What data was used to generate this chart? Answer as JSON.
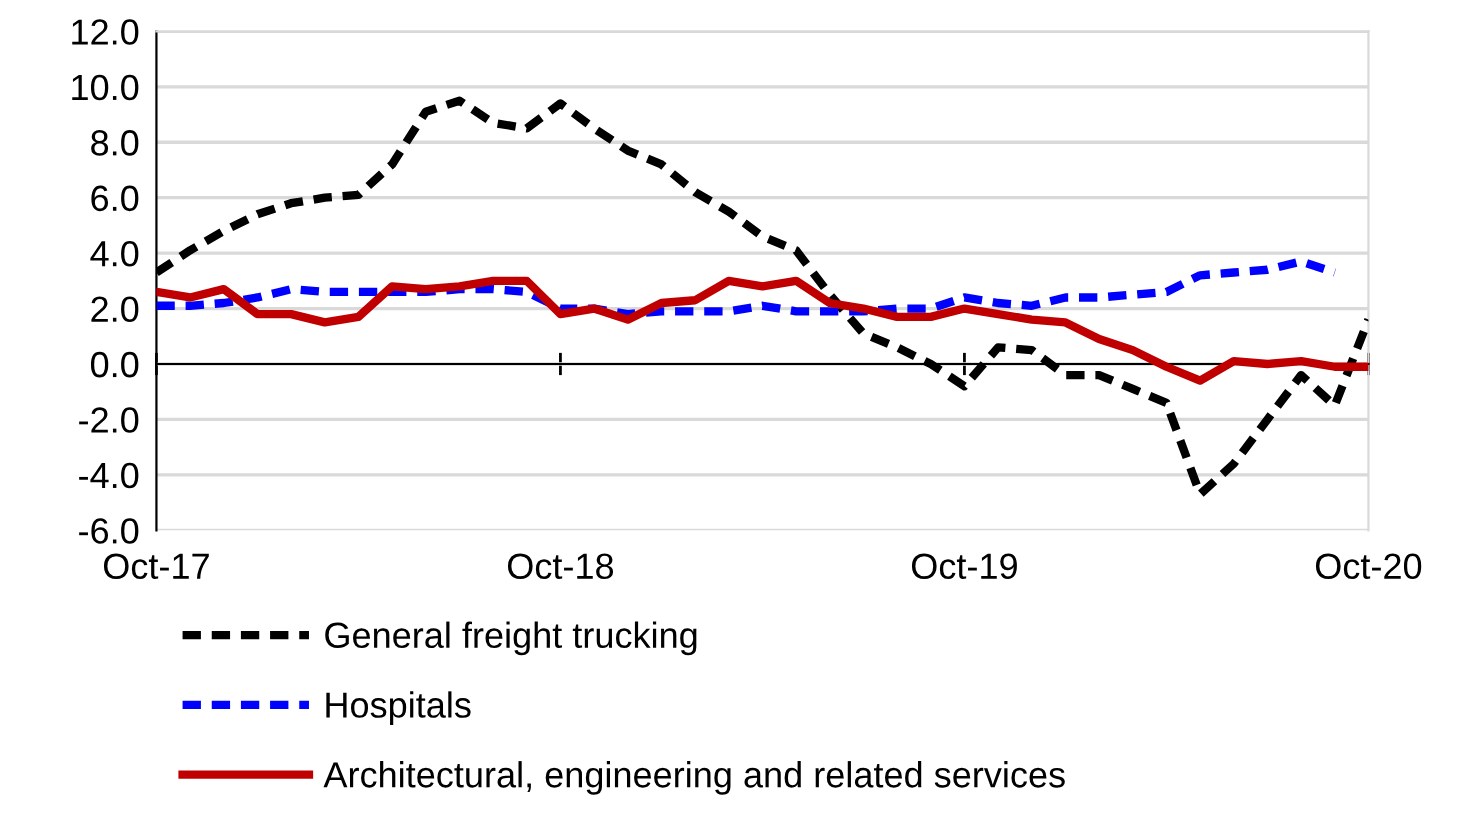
{
  "chart_data": {
    "type": "line",
    "categories": [
      "Oct-17",
      null,
      null,
      null,
      null,
      null,
      null,
      null,
      null,
      null,
      null,
      null,
      "Oct-18",
      null,
      null,
      null,
      null,
      null,
      null,
      null,
      null,
      null,
      null,
      null,
      "Oct-19",
      null,
      null,
      null,
      null,
      null,
      null,
      null,
      null,
      null,
      null,
      null,
      "Oct-20"
    ],
    "series": [
      {
        "name": "General freight trucking",
        "color": "#000000",
        "line_style": "dashed",
        "values": [
          3.3,
          4.1,
          4.8,
          5.4,
          5.8,
          6.0,
          6.1,
          7.2,
          9.1,
          9.5,
          8.7,
          8.5,
          9.4,
          8.5,
          7.7,
          7.2,
          6.2,
          5.5,
          4.6,
          4.1,
          2.5,
          1.1,
          0.6,
          0.0,
          -0.8,
          0.6,
          0.5,
          -0.4,
          -0.4,
          -0.9,
          -1.4,
          -4.7,
          -3.6,
          -2.0,
          -0.4,
          -1.5,
          1.6
        ]
      },
      {
        "name": "Hospitals",
        "color": "#0000ff",
        "line_style": "dashed",
        "values": [
          2.1,
          2.1,
          2.2,
          2.4,
          2.7,
          2.6,
          2.6,
          2.6,
          2.6,
          2.7,
          2.7,
          2.6,
          2.0,
          2.0,
          1.8,
          1.9,
          1.9,
          1.9,
          2.1,
          1.9,
          1.9,
          1.9,
          2.0,
          2.0,
          2.4,
          2.2,
          2.1,
          2.4,
          2.4,
          2.5,
          2.6,
          3.2,
          3.3,
          3.4,
          3.7,
          3.3,
          null
        ]
      },
      {
        "name": "Architectural, engineering and related services",
        "color": "#c00000",
        "line_style": "solid",
        "values": [
          2.6,
          2.4,
          2.7,
          1.8,
          1.8,
          1.5,
          1.7,
          2.8,
          2.7,
          2.8,
          3.0,
          3.0,
          1.8,
          2.0,
          1.6,
          2.2,
          2.3,
          3.0,
          2.8,
          3.0,
          2.2,
          2.0,
          1.7,
          1.7,
          2.0,
          1.8,
          1.6,
          1.5,
          0.9,
          0.5,
          -0.1,
          -0.6,
          0.1,
          0.0,
          0.1,
          -0.1,
          -0.1
        ]
      }
    ],
    "ylim": [
      -6,
      12
    ],
    "yticks": [
      {
        "value": -6,
        "label": "-6.0"
      },
      {
        "value": -4,
        "label": "-4.0"
      },
      {
        "value": -2,
        "label": "-2.0"
      },
      {
        "value": 0,
        "label": "0.0"
      },
      {
        "value": 2,
        "label": "2.0"
      },
      {
        "value": 4,
        "label": "4.0"
      },
      {
        "value": 6,
        "label": "6.0"
      },
      {
        "value": 8,
        "label": "8.0"
      },
      {
        "value": 10,
        "label": "10.0"
      },
      {
        "value": 12,
        "label": "12.0"
      }
    ],
    "grid": "y",
    "legend": "bottom"
  }
}
